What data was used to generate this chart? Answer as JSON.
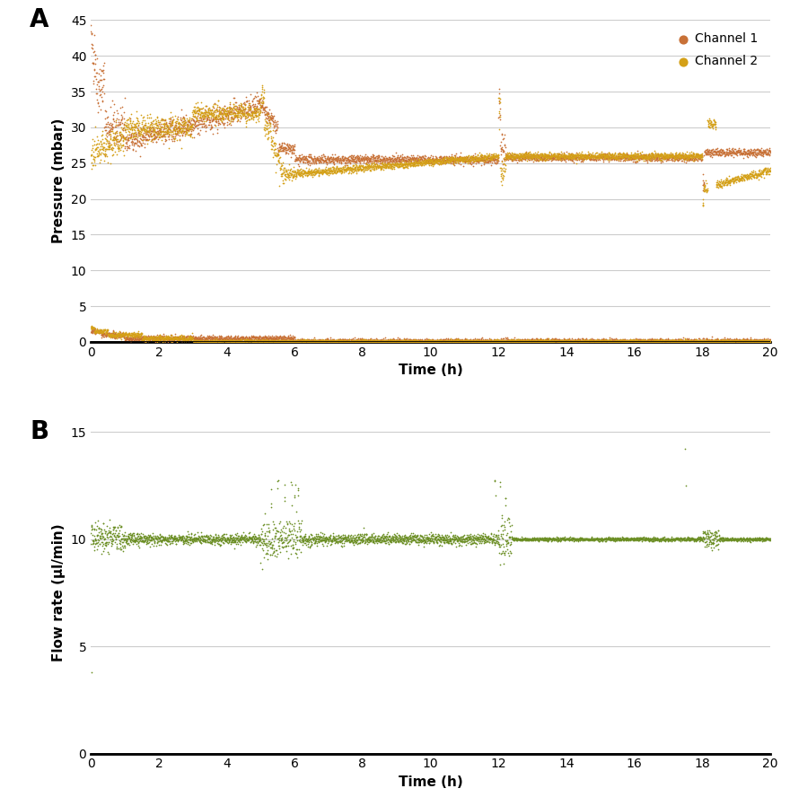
{
  "panel_A_label": "A",
  "panel_B_label": "B",
  "ch1_color": "#C87137",
  "ch2_color": "#D4A017",
  "flow_color": "#6B8E23",
  "ch1_label": "Channel 1",
  "ch2_label": "Channel 2",
  "pressure_ylabel": "Pressure (mbar)",
  "flow_ylabel": "Flow rate (µl/min)",
  "xlabel": "Time (h)",
  "pressure_ylim": [
    0,
    45
  ],
  "pressure_yticks": [
    0,
    5,
    10,
    15,
    20,
    25,
    30,
    35,
    40,
    45
  ],
  "flow_ylim": [
    0,
    15
  ],
  "flow_yticks": [
    0,
    5,
    10,
    15
  ],
  "xlim": [
    0,
    20
  ],
  "xticks": [
    0,
    2,
    4,
    6,
    8,
    10,
    12,
    14,
    16,
    18,
    20
  ],
  "dot_size": 1.5,
  "flow_dot_size": 1.5,
  "background_color": "#ffffff",
  "grid_color": "#cccccc",
  "seed": 42
}
